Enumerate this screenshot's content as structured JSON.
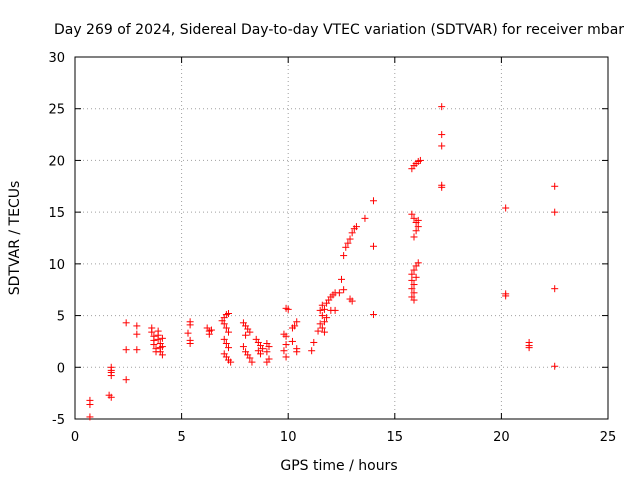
{
  "colors": {
    "marker": "#ff0000",
    "grid": "#a0a0a0",
    "axis": "#000000"
  },
  "chart_data": {
    "type": "scatter",
    "title": "Day 269 of 2024, Sidereal Day-to-day VTEC variation (SDTVAR) for receiver mbar",
    "xlabel": "GPS time / hours",
    "ylabel": "SDTVAR / TECUs",
    "xlim": [
      0,
      25
    ],
    "ylim": [
      -5,
      30
    ],
    "xticks": [
      0,
      5,
      10,
      15,
      20,
      25
    ],
    "yticks": [
      -5,
      0,
      5,
      10,
      15,
      20,
      25,
      30
    ],
    "grid": true,
    "marker": "plus",
    "series": [
      {
        "name": "SDTVAR",
        "points": [
          [
            0.7,
            -3.2
          ],
          [
            0.7,
            -3.6
          ],
          [
            0.7,
            -4.8
          ],
          [
            1.7,
            0.0
          ],
          [
            1.7,
            -0.3
          ],
          [
            1.7,
            -0.5
          ],
          [
            1.7,
            -0.8
          ],
          [
            1.6,
            -2.7
          ],
          [
            1.7,
            -2.9
          ],
          [
            2.4,
            4.3
          ],
          [
            2.4,
            1.7
          ],
          [
            2.4,
            -1.2
          ],
          [
            2.9,
            4.0
          ],
          [
            2.9,
            3.2
          ],
          [
            2.9,
            1.7
          ],
          [
            3.6,
            3.8
          ],
          [
            3.6,
            3.4
          ],
          [
            3.7,
            3.0
          ],
          [
            3.7,
            2.6
          ],
          [
            3.7,
            2.2
          ],
          [
            3.8,
            1.8
          ],
          [
            3.8,
            1.5
          ],
          [
            3.9,
            3.5
          ],
          [
            3.9,
            3.1
          ],
          [
            3.9,
            2.7
          ],
          [
            4.0,
            2.3
          ],
          [
            4.0,
            1.9
          ],
          [
            4.0,
            1.5
          ],
          [
            4.1,
            1.2
          ],
          [
            4.1,
            2.0
          ],
          [
            4.1,
            2.8
          ],
          [
            5.4,
            4.4
          ],
          [
            5.4,
            4.1
          ],
          [
            5.3,
            3.3
          ],
          [
            5.4,
            2.6
          ],
          [
            5.4,
            2.3
          ],
          [
            6.2,
            3.8
          ],
          [
            6.3,
            3.5
          ],
          [
            6.3,
            3.2
          ],
          [
            6.4,
            3.6
          ],
          [
            6.9,
            4.5
          ],
          [
            7.0,
            4.8
          ],
          [
            7.1,
            5.1
          ],
          [
            7.2,
            5.2
          ],
          [
            7.0,
            4.2
          ],
          [
            7.1,
            3.8
          ],
          [
            7.2,
            3.4
          ],
          [
            7.0,
            2.7
          ],
          [
            7.1,
            2.3
          ],
          [
            7.0,
            1.3
          ],
          [
            7.1,
            1.0
          ],
          [
            7.2,
            0.7
          ],
          [
            7.3,
            0.5
          ],
          [
            7.2,
            1.9
          ],
          [
            7.9,
            4.3
          ],
          [
            8.0,
            4.0
          ],
          [
            8.1,
            3.7
          ],
          [
            8.2,
            3.4
          ],
          [
            8.0,
            3.1
          ],
          [
            7.9,
            2.0
          ],
          [
            8.0,
            1.5
          ],
          [
            8.1,
            1.2
          ],
          [
            8.2,
            0.9
          ],
          [
            8.3,
            0.5
          ],
          [
            8.5,
            2.7
          ],
          [
            8.6,
            2.4
          ],
          [
            8.7,
            2.1
          ],
          [
            8.6,
            1.6
          ],
          [
            8.7,
            1.3
          ],
          [
            8.8,
            1.8
          ],
          [
            9.0,
            2.3
          ],
          [
            9.1,
            2.0
          ],
          [
            9.0,
            1.5
          ],
          [
            9.1,
            0.8
          ],
          [
            9.0,
            0.5
          ],
          [
            9.8,
            3.2
          ],
          [
            9.9,
            3.0
          ],
          [
            9.9,
            5.7
          ],
          [
            10.0,
            5.6
          ],
          [
            9.9,
            2.2
          ],
          [
            9.8,
            1.6
          ],
          [
            9.9,
            1.0
          ],
          [
            10.2,
            3.8
          ],
          [
            10.3,
            4.0
          ],
          [
            10.4,
            4.4
          ],
          [
            10.2,
            2.5
          ],
          [
            10.4,
            1.8
          ],
          [
            10.4,
            1.5
          ],
          [
            11.2,
            2.4
          ],
          [
            11.1,
            1.6
          ],
          [
            11.4,
            3.5
          ],
          [
            11.5,
            4.2
          ],
          [
            11.6,
            5.0
          ],
          [
            11.7,
            5.6
          ],
          [
            11.8,
            6.2
          ],
          [
            11.9,
            6.5
          ],
          [
            12.0,
            6.8
          ],
          [
            12.1,
            7.0
          ],
          [
            12.2,
            7.2
          ],
          [
            11.6,
            3.8
          ],
          [
            11.7,
            4.4
          ],
          [
            11.8,
            4.8
          ],
          [
            11.5,
            5.5
          ],
          [
            11.6,
            6.0
          ],
          [
            11.7,
            3.4
          ],
          [
            12.0,
            5.5
          ],
          [
            12.2,
            5.5
          ],
          [
            12.4,
            7.2
          ],
          [
            12.5,
            8.5
          ],
          [
            12.6,
            7.5
          ],
          [
            12.6,
            10.8
          ],
          [
            12.7,
            11.6
          ],
          [
            12.8,
            12.0
          ],
          [
            12.9,
            12.4
          ],
          [
            13.0,
            13.0
          ],
          [
            13.1,
            13.4
          ],
          [
            13.2,
            13.6
          ],
          [
            12.9,
            6.6
          ],
          [
            13.0,
            6.4
          ],
          [
            13.6,
            14.4
          ],
          [
            14.0,
            16.1
          ],
          [
            14.0,
            11.7
          ],
          [
            14.0,
            5.1
          ],
          [
            15.8,
            19.2
          ],
          [
            15.9,
            19.5
          ],
          [
            16.0,
            19.7
          ],
          [
            16.1,
            19.9
          ],
          [
            16.2,
            20.0
          ],
          [
            15.8,
            14.8
          ],
          [
            15.9,
            14.4
          ],
          [
            16.0,
            14.0
          ],
          [
            16.1,
            13.6
          ],
          [
            16.0,
            13.2
          ],
          [
            15.9,
            12.6
          ],
          [
            16.1,
            14.2
          ],
          [
            15.8,
            9.0
          ],
          [
            15.9,
            9.4
          ],
          [
            16.0,
            9.8
          ],
          [
            16.1,
            10.1
          ],
          [
            15.8,
            8.4
          ],
          [
            15.9,
            8.0
          ],
          [
            15.8,
            7.6
          ],
          [
            15.9,
            7.2
          ],
          [
            15.8,
            6.8
          ],
          [
            15.9,
            6.5
          ],
          [
            16.0,
            8.7
          ],
          [
            17.2,
            25.2
          ],
          [
            17.2,
            22.5
          ],
          [
            17.2,
            21.4
          ],
          [
            17.2,
            17.6
          ],
          [
            17.2,
            17.4
          ],
          [
            20.2,
            15.4
          ],
          [
            20.2,
            7.1
          ],
          [
            20.2,
            6.9
          ],
          [
            21.3,
            2.4
          ],
          [
            21.3,
            2.1
          ],
          [
            21.3,
            1.9
          ],
          [
            22.5,
            17.5
          ],
          [
            22.5,
            15.0
          ],
          [
            22.5,
            7.6
          ],
          [
            22.5,
            0.1
          ]
        ]
      }
    ]
  }
}
